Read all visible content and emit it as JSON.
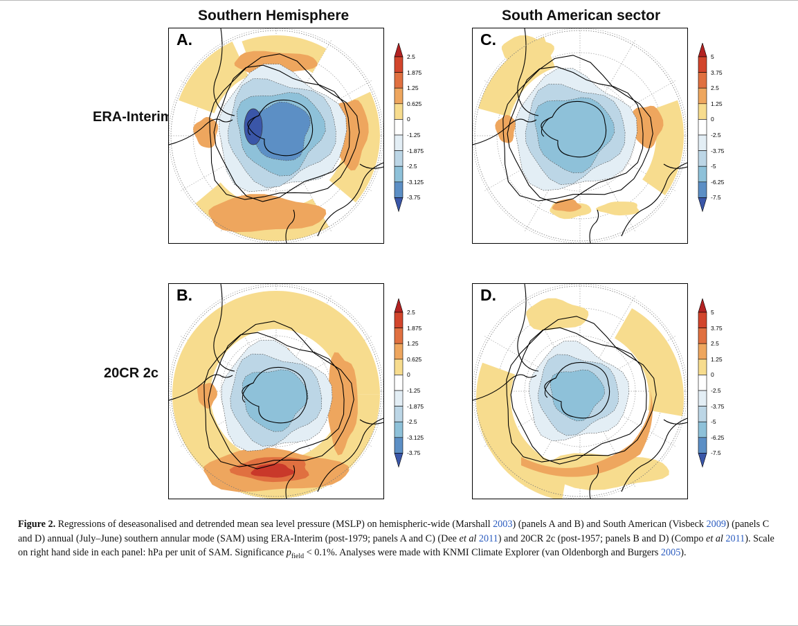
{
  "columns": [
    "Southern Hemisphere",
    "South American sector"
  ],
  "rows": [
    "ERA-Interim",
    "20CR 2c"
  ],
  "panels": [
    {
      "letter": "A.",
      "scale": "left"
    },
    {
      "letter": "C.",
      "scale": "right"
    },
    {
      "letter": "B.",
      "scale": "left"
    },
    {
      "letter": "D.",
      "scale": "right"
    }
  ],
  "colorbar_left": [
    "2.5",
    "1.875",
    "1.25",
    "0.625",
    "0",
    "-1.25",
    "-1.875",
    "-2.5",
    "-3.125",
    "-3.75"
  ],
  "colorbar_right": [
    "5",
    "3.75",
    "2.5",
    "1.25",
    "0",
    "-2.5",
    "-3.75",
    "-5",
    "-6.25",
    "-7.5"
  ],
  "colorbar_colors": [
    "#b22222",
    "#d2452c",
    "#e07040",
    "#eea65e",
    "#f7dc8e",
    "#ffffff",
    "#e3eef5",
    "#bcd6e6",
    "#8ec1d9",
    "#5c8fc5",
    "#3a56a8"
  ],
  "colors": {
    "positive_light": "#f7dc8e",
    "positive_mid": "#eea65e",
    "positive_strong": "#e07040",
    "positive_max": "#c9382a",
    "negative_1": "#e3eef5",
    "negative_2": "#bcd6e6",
    "negative_3": "#8ec1d9",
    "negative_4": "#5c8fc5",
    "negative_5": "#3a56a8"
  },
  "caption": {
    "label": "Figure 2.",
    "t1": " Regressions of deseasonalised and detrended mean sea level pressure (MSLP) on hemispheric-wide (Marshall ",
    "r1": "2003",
    "t2": ") (panels A and B) and South American (Visbeck ",
    "r2": "2009",
    "t3": ") (panels C and D) annual (July–June) southern annular mode (SAM) using ERA-Interim (post-1979; panels A and C) (Dee ",
    "etal1": "et al",
    "r3": "2011",
    "t4": ") and 20CR 2c (post-1957; panels B and D) (Compo ",
    "etal2": "et al",
    "r4": "2011",
    "t5": "). Scale on right hand side in each panel: hPa per unit of SAM. Significance ",
    "p": "p",
    "psub": "field",
    "t6": " < 0.1%. Analyses were made with KNMI Climate Explorer (van Oldenborgh and Burgers ",
    "r5": "2005",
    "t7": ")."
  }
}
